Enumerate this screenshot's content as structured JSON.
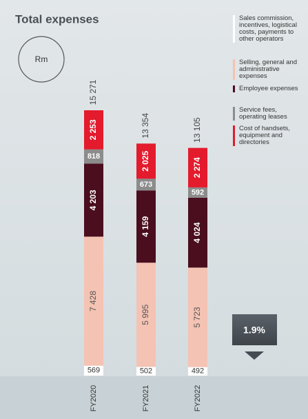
{
  "chart_data": {
    "type": "stacked_bar",
    "title": "Total expenses",
    "unit": "Rm",
    "categories": [
      "FY2020",
      "FY2021",
      "FY2022"
    ],
    "series": [
      {
        "name": "Sales commission, incentives, logistical costs, payments to other operators",
        "color": "#ffffff",
        "values": [
          569,
          502,
          492
        ]
      },
      {
        "name": "Selling, general and administrative expenses",
        "color": "#f4c3b3",
        "values": [
          7428,
          5995,
          5723
        ],
        "value_labels": [
          "7 428",
          "5 995",
          "5 723"
        ]
      },
      {
        "name": "Employee expenses",
        "color": "#4a0e1e",
        "values": [
          4203,
          4159,
          4024
        ],
        "value_labels": [
          "4 203",
          "4 159",
          "4 024"
        ]
      },
      {
        "name": "Service fees, operating leases",
        "color": "#8c8c8c",
        "values": [
          818,
          673,
          592
        ]
      },
      {
        "name": "Cost of handsets, equipment and directories",
        "color": "#e31b2d",
        "values": [
          2253,
          2025,
          2274
        ],
        "value_labels": [
          "2 253",
          "2 025",
          "2 274"
        ]
      }
    ],
    "totals": [
      15271,
      13354,
      13105
    ],
    "total_labels": [
      "15 271",
      "13 354",
      "13 105"
    ],
    "annotation": "1.9%"
  }
}
